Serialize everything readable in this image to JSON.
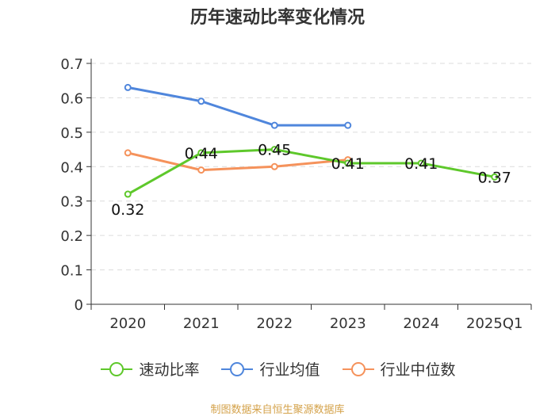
{
  "chart_data": {
    "type": "line",
    "title": "历年速动比率变化情况",
    "categories": [
      "2020",
      "2021",
      "2022",
      "2023",
      "2024",
      "2025Q1"
    ],
    "ylim": [
      0,
      0.7
    ],
    "yticks": [
      "0",
      "0.1",
      "0.2",
      "0.3",
      "0.4",
      "0.5",
      "0.6",
      "0.7"
    ],
    "grid": true,
    "legend_position": "bottom",
    "series": [
      {
        "name": "速动比率",
        "color": "#5ec82b",
        "values": [
          0.32,
          0.44,
          0.45,
          0.41,
          0.41,
          0.37
        ],
        "labels": [
          "0.32",
          "0.44",
          "0.45",
          "0.41",
          "0.41",
          "0.37"
        ],
        "show_labels": true
      },
      {
        "name": "行业均值",
        "color": "#4f86dc",
        "values": [
          0.63,
          0.59,
          0.52,
          0.52,
          null,
          null
        ],
        "show_labels": false
      },
      {
        "name": "行业中位数",
        "color": "#f5925b",
        "values": [
          0.44,
          0.39,
          0.4,
          0.42,
          null,
          null
        ],
        "show_labels": false
      }
    ]
  },
  "source": "制图数据来自恒生聚源数据库"
}
